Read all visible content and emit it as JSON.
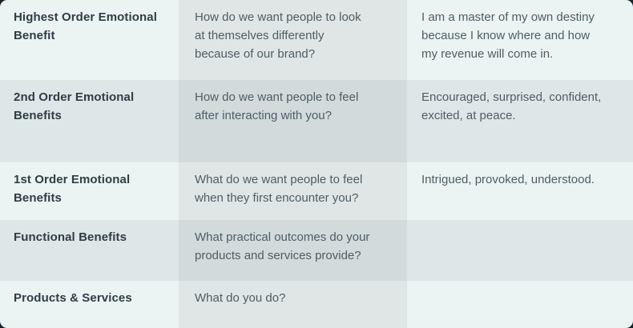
{
  "card": {
    "title_semantic": "brand-benefits-ladder-table",
    "columns": [
      "benefit-level",
      "prompt-question",
      "answer"
    ],
    "rows": [
      {
        "label": "Highest Order Emotional\nBenefit",
        "question": "How do we want people to look\nat themselves differently\nbecause of our brand?",
        "answer": "I am a master of my own destiny\nbecause I know where and how\nmy revenue will come in."
      },
      {
        "label": "2nd Order Emotional\nBenefits",
        "question": "How do we want people to feel\nafter interacting with you?",
        "answer": "Encouraged, surprised, confident,\nexcited, at peace."
      },
      {
        "label": "1st Order Emotional\nBenefits",
        "question": "What do we want people to feel\nwhen they first encounter you?",
        "answer": "Intrigued, provoked, understood."
      },
      {
        "label": "Functional Benefits",
        "question": "What practical outcomes do your\nproducts and services provide?",
        "answer": ""
      },
      {
        "label": "Products & Services",
        "question": "What do you do?",
        "answer": ""
      }
    ]
  },
  "colors": {
    "page_background": "#16222a",
    "row_odd_side_bg": "#ebf4f2",
    "row_odd_middle_bg": "#dfe6e5",
    "row_even_side_bg": "#dee7e8",
    "row_even_middle_bg": "#d2dadb",
    "label_text": "#2f3d47",
    "body_text": "#4f5d66"
  }
}
